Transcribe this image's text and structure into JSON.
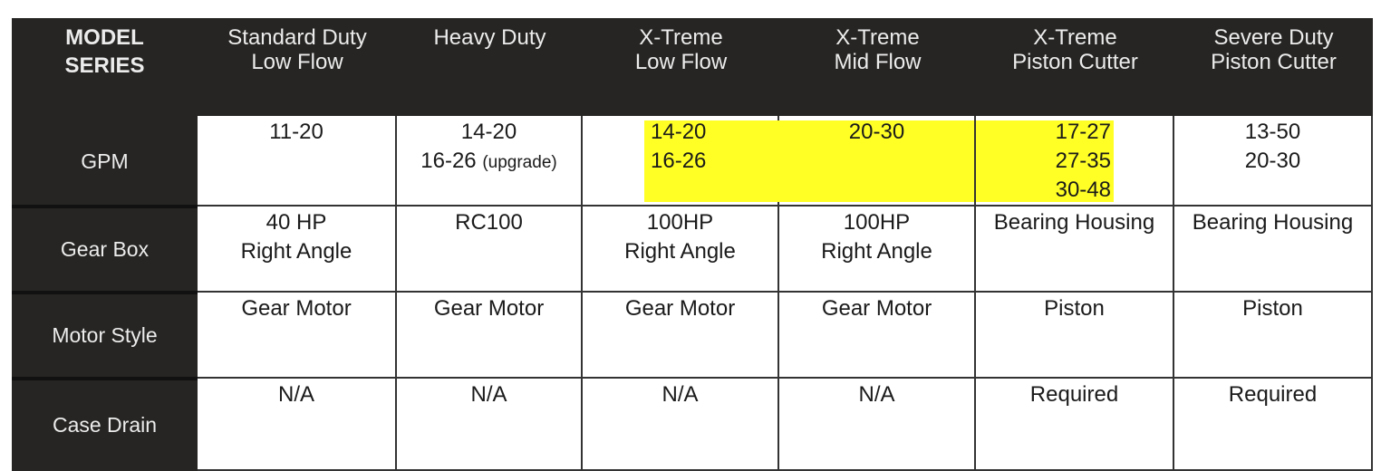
{
  "header": {
    "corner": "MODEL\nSERIES",
    "columns": [
      "Standard Duty\nLow Flow",
      "Heavy Duty",
      "X-Treme\nLow Flow",
      "X-Treme\nMid Flow",
      "X-Treme\nPiston Cutter",
      "Severe Duty\nPiston Cutter"
    ]
  },
  "highlight_color": "#ffff26",
  "rows": [
    {
      "label": "GPM",
      "cells": [
        {
          "lines": [
            "11-20"
          ]
        },
        {
          "lines": [
            "14-20",
            "16-26"
          ],
          "note": "(upgrade)"
        },
        {
          "lines": [
            "14-20",
            "16-26"
          ],
          "highlighted": true
        },
        {
          "lines": [
            "20-30"
          ],
          "highlighted": true
        },
        {
          "lines": [
            "17-27",
            "27-35",
            "30-48"
          ],
          "highlighted": true
        },
        {
          "lines": [
            "13-50",
            "20-30"
          ]
        }
      ]
    },
    {
      "label": "Gear Box",
      "cells": [
        {
          "lines": [
            "40 HP",
            "Right Angle"
          ]
        },
        {
          "lines": [
            "RC100"
          ]
        },
        {
          "lines": [
            "100HP",
            "Right Angle"
          ]
        },
        {
          "lines": [
            "100HP",
            "Right Angle"
          ]
        },
        {
          "lines": [
            "Bearing Housing"
          ]
        },
        {
          "lines": [
            "Bearing Housing"
          ]
        }
      ]
    },
    {
      "label": "Motor Style",
      "cells": [
        {
          "lines": [
            "Gear Motor"
          ]
        },
        {
          "lines": [
            "Gear Motor"
          ]
        },
        {
          "lines": [
            "Gear Motor"
          ]
        },
        {
          "lines": [
            "Gear Motor"
          ]
        },
        {
          "lines": [
            "Piston"
          ]
        },
        {
          "lines": [
            "Piston"
          ]
        }
      ]
    },
    {
      "label": "Case Drain",
      "cells": [
        {
          "lines": [
            "N/A"
          ]
        },
        {
          "lines": [
            "N/A"
          ]
        },
        {
          "lines": [
            "N/A"
          ]
        },
        {
          "lines": [
            "N/A"
          ]
        },
        {
          "lines": [
            "Required"
          ]
        },
        {
          "lines": [
            "Required"
          ]
        }
      ]
    }
  ]
}
